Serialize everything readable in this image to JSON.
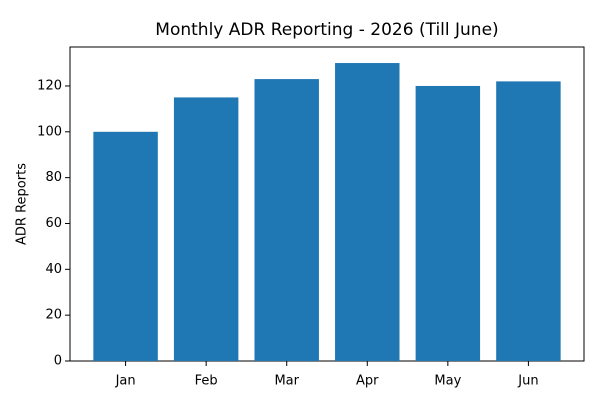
{
  "chart_data": {
    "type": "bar",
    "title": "Monthly ADR Reporting - 2026 (Till June)",
    "y_label": "ADR Reports",
    "categories": [
      "Jan",
      "Feb",
      "Mar",
      "Apr",
      "May",
      "Jun"
    ],
    "values": [
      100,
      115,
      123,
      130,
      120,
      122
    ],
    "color": "#1f77b4",
    "ylim": [
      0,
      137
    ],
    "yticks": [
      0,
      20,
      40,
      60,
      80,
      100,
      120
    ],
    "grid": false
  }
}
